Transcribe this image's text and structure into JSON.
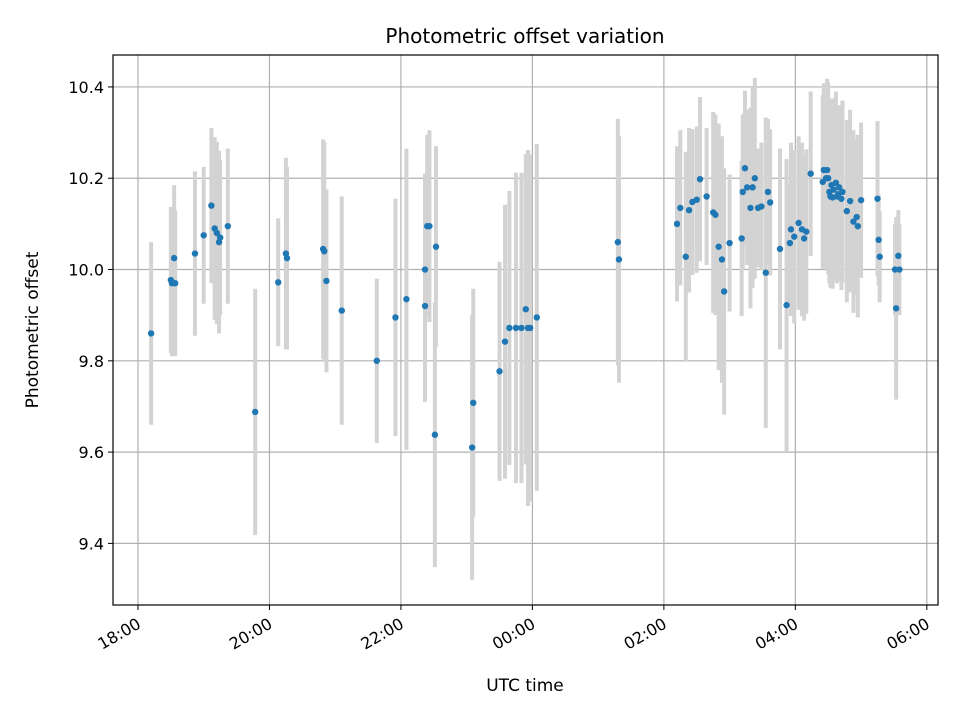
{
  "chart_data": {
    "type": "scatter",
    "title": "Photometric offset variation",
    "xlabel": "UTC time",
    "ylabel": "Photometric offset",
    "x_tick_labels": [
      "18:00",
      "20:00",
      "22:00",
      "00:00",
      "02:00",
      "04:00",
      "06:00"
    ],
    "x_tick_hours": [
      0,
      2,
      4,
      6,
      8,
      10,
      12
    ],
    "y_ticks": [
      9.4,
      9.6,
      9.8,
      10.0,
      10.2,
      10.4
    ],
    "xlim_hours_from_1800": [
      -0.38,
      12.17
    ],
    "ylim": [
      9.265,
      10.47
    ],
    "grid": true,
    "colors": {
      "points": "#1f77b4",
      "errorbars": "#d3d3d3",
      "grid": "#b0b0b0"
    },
    "series": [
      {
        "x": [
          "18:12",
          "18:30",
          "18:31",
          "18:33",
          "18:34",
          "18:52",
          "19:00",
          "19:07",
          "19:10",
          "19:12",
          "19:14",
          "19:15",
          "19:22",
          "19:47",
          "20:08",
          "20:15",
          "20:16",
          "20:49",
          "20:50",
          "20:52",
          "21:06",
          "21:38",
          "21:55",
          "22:05",
          "22:22",
          "22:22",
          "22:24",
          "22:26",
          "22:31",
          "22:32",
          "23:05",
          "23:06",
          "23:30",
          "23:35",
          "23:39",
          "23:45",
          "23:50",
          "23:54",
          "23:56",
          "23:58",
          "24:04",
          "25:18",
          "25:19",
          "26:12",
          "26:15",
          "26:20",
          "26:23",
          "26:26",
          "26:30",
          "26:33",
          "26:39",
          "26:45",
          "26:47",
          "26:50",
          "26:53",
          "26:55",
          "27:00",
          "27:11",
          "27:12",
          "27:14",
          "27:16",
          "27:19",
          "27:21",
          "27:23",
          "27:26",
          "27:29",
          "27:33",
          "27:35",
          "27:37",
          "27:46",
          "27:52",
          "27:55",
          "27:56",
          "27:59",
          "28:03",
          "28:06",
          "28:08",
          "28:10",
          "28:14",
          "28:25",
          "28:26",
          "28:28",
          "28:29",
          "28:30",
          "28:31",
          "28:32",
          "28:33",
          "28:34",
          "28:35",
          "28:37",
          "28:38",
          "28:39",
          "28:40",
          "28:42",
          "28:43",
          "28:47",
          "28:50",
          "28:53",
          "28:56",
          "28:57",
          "29:00",
          "29:15",
          "29:16",
          "29:17",
          "29:31",
          "29:32",
          "29:34",
          "29:35"
        ],
        "y": [
          9.86,
          9.977,
          9.97,
          10.025,
          9.97,
          10.035,
          10.075,
          10.14,
          10.09,
          10.08,
          10.06,
          10.07,
          10.095,
          9.688,
          9.972,
          10.035,
          10.025,
          10.045,
          10.04,
          9.975,
          9.91,
          9.8,
          9.895,
          9.935,
          10.0,
          9.92,
          10.095,
          10.095,
          9.638,
          10.05,
          9.61,
          9.708,
          9.777,
          9.842,
          9.872,
          9.872,
          9.872,
          9.913,
          9.872,
          9.872,
          9.895,
          10.06,
          10.022,
          10.1,
          10.135,
          10.028,
          10.13,
          10.148,
          10.153,
          10.198,
          10.16,
          10.125,
          10.12,
          10.05,
          10.022,
          9.952,
          10.058,
          10.068,
          10.17,
          10.222,
          10.18,
          10.135,
          10.18,
          10.2,
          10.135,
          10.138,
          9.993,
          10.17,
          10.147,
          10.045,
          9.922,
          10.058,
          10.088,
          10.072,
          10.102,
          10.088,
          10.068,
          10.083,
          10.21,
          10.192,
          10.218,
          10.2,
          10.218,
          10.2,
          10.17,
          10.16,
          10.185,
          10.158,
          10.175,
          10.19,
          10.16,
          10.165,
          10.18,
          10.155,
          10.17,
          10.128,
          10.15,
          10.105,
          10.115,
          10.095,
          10.152,
          10.155,
          10.065,
          10.028,
          10.0,
          9.915,
          10.03,
          10.0
        ],
        "yerr": [
          0.2,
          0.16,
          0.16,
          0.16,
          0.16,
          0.18,
          0.15,
          0.17,
          0.2,
          0.2,
          0.2,
          0.17,
          0.17,
          0.27,
          0.14,
          0.21,
          0.2,
          0.24,
          0.24,
          0.2,
          0.25,
          0.18,
          0.26,
          0.33,
          0.21,
          0.21,
          0.2,
          0.21,
          0.29,
          0.22,
          0.29,
          0.25,
          0.24,
          0.3,
          0.3,
          0.34,
          0.34,
          0.34,
          0.39,
          0.38,
          0.38,
          0.27,
          0.27,
          0.17,
          0.17,
          0.23,
          0.18,
          0.16,
          0.16,
          0.18,
          0.15,
          0.22,
          0.22,
          0.27,
          0.27,
          0.27,
          0.15,
          0.17,
          0.17,
          0.17,
          0.17,
          0.22,
          0.22,
          0.22,
          0.13,
          0.14,
          0.34,
          0.16,
          0.16,
          0.22,
          0.32,
          0.13,
          0.19,
          0.19,
          0.19,
          0.19,
          0.18,
          0.18,
          0.18,
          0.19,
          0.19,
          0.2,
          0.2,
          0.21,
          0.2,
          0.2,
          0.19,
          0.2,
          0.2,
          0.2,
          0.19,
          0.19,
          0.18,
          0.2,
          0.2,
          0.2,
          0.2,
          0.2,
          0.17,
          0.2,
          0.17,
          0.17,
          0.1,
          0.1,
          0.1,
          0.2,
          0.1,
          0.1
        ]
      }
    ]
  }
}
